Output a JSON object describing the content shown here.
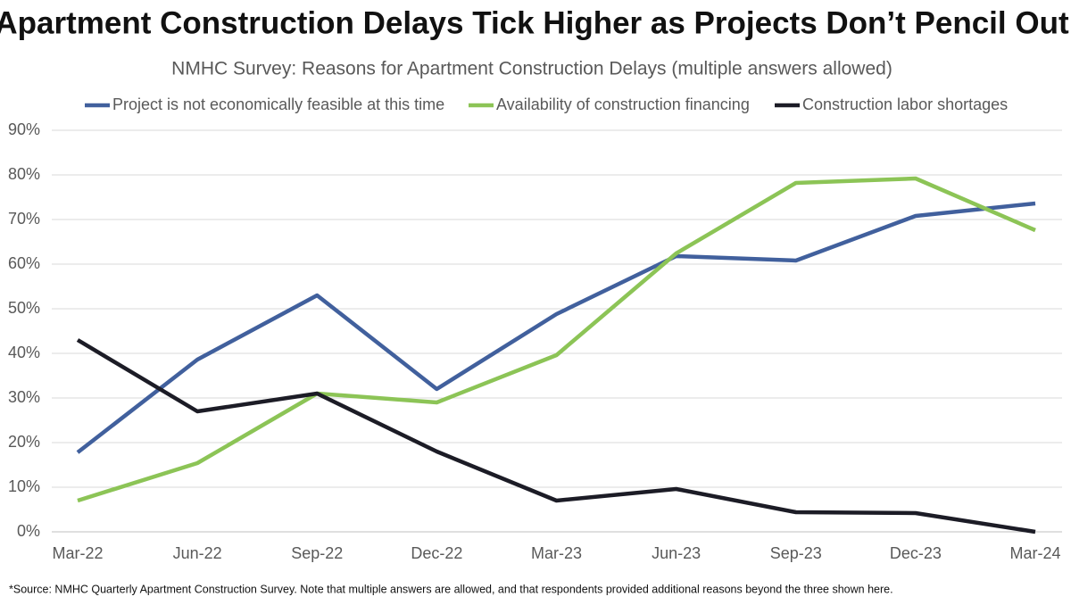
{
  "chart_data": {
    "type": "line",
    "title": "Apartment Construction Delays Tick Higher as Projects Don’t Pencil Out",
    "subtitle": "NMHC Survey: Reasons for Apartment Construction Delays (multiple answers allowed)",
    "note": "*Source: NMHC Quarterly Apartment Construction Survey. Note that multiple answers are allowed, and that respondents provided additional reasons beyond the three shown here.",
    "categories": [
      "Mar-22",
      "Jun-22",
      "Sep-22",
      "Dec-22",
      "Mar-23",
      "Jun-23",
      "Sep-23",
      "Dec-23",
      "Mar-24"
    ],
    "series": [
      {
        "name": "Project is not economically feasible at this time",
        "color": "#41609d",
        "values": [
          17.8,
          38.6,
          53,
          32,
          48.8,
          61.8,
          60.8,
          70.8,
          73.6
        ]
      },
      {
        "name": "Availability of construction financing",
        "color": "#8cc456",
        "values": [
          7,
          15.4,
          31,
          29,
          39.6,
          62.4,
          78.2,
          79.2,
          67.6
        ]
      },
      {
        "name": "Construction labor shortages",
        "color": "#1c1c26",
        "values": [
          43,
          27,
          31,
          18,
          7,
          9.6,
          4.4,
          4.2,
          0
        ]
      }
    ],
    "ylim": [
      0,
      90
    ],
    "yticks": [
      {
        "value": 0,
        "label": "0%"
      },
      {
        "value": 10,
        "label": "10%"
      },
      {
        "value": 20,
        "label": "20%"
      },
      {
        "value": 30,
        "label": "30%"
      },
      {
        "value": 40,
        "label": "40%"
      },
      {
        "value": 50,
        "label": "50%"
      },
      {
        "value": 60,
        "label": "60%"
      },
      {
        "value": 70,
        "label": "70%"
      },
      {
        "value": 80,
        "label": "80%"
      },
      {
        "value": 90,
        "label": "90%"
      }
    ],
    "grid": true,
    "legend": "top"
  }
}
